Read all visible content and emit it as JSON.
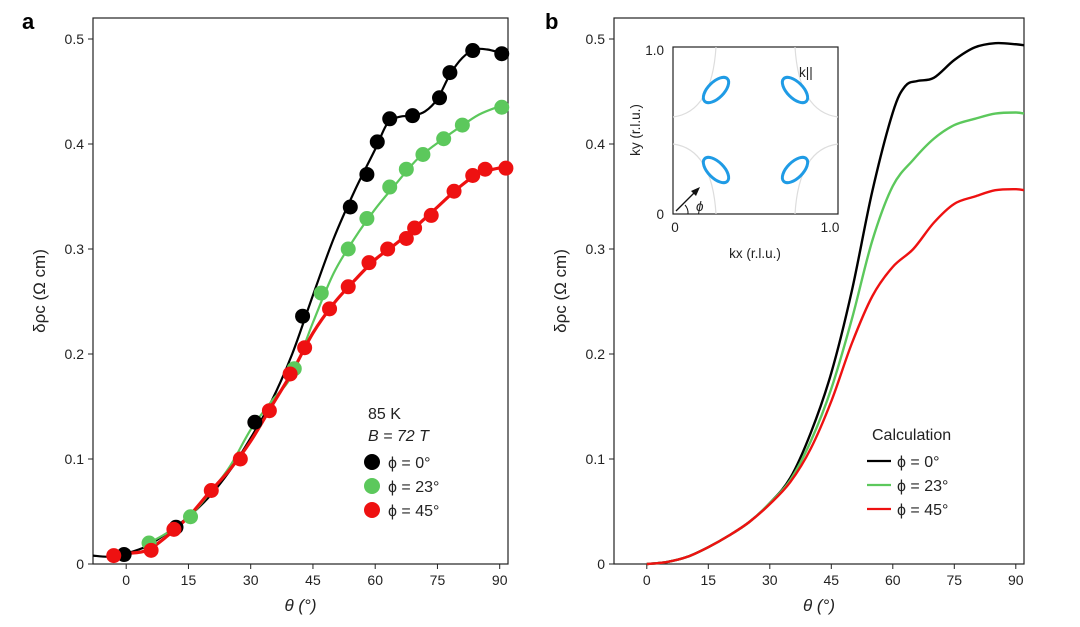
{
  "panel_a_letter": "a",
  "panel_b_letter": "b",
  "legend_a": {
    "line1": "85 K",
    "line2": "B = 72 T",
    "entries": [
      "ϕ = 0°",
      "ϕ = 23°",
      "ϕ = 45°"
    ]
  },
  "legend_b": {
    "title": "Calculation",
    "entries": [
      "ϕ = 0°",
      "ϕ = 23°",
      "ϕ = 45°"
    ]
  },
  "inset": {
    "xlabel": "kx (r.l.u.)",
    "ylabel": "ky (r.l.u.)",
    "x_ticks": [
      "0",
      "1.0"
    ],
    "y_ticks": [
      "0",
      "1.0"
    ],
    "kll_label": "k||",
    "phi_label": "ϕ"
  },
  "colors": {
    "phi0": "#000000",
    "phi23": "#5cc85c",
    "phi45": "#ee1111",
    "pocket": "#1f9be5"
  },
  "chart_data": [
    {
      "type": "scatter",
      "xlabel": "θ (°)",
      "ylabel": "δρc (Ω cm)",
      "xlim": [
        -8,
        92
      ],
      "ylim": [
        0,
        0.52
      ],
      "x_ticks": [
        0,
        15,
        30,
        45,
        60,
        75,
        90
      ],
      "y_ticks": [
        0,
        0.1,
        0.2,
        0.3,
        0.4,
        0.5
      ],
      "series": [
        {
          "name": "ϕ = 0°",
          "points": [
            [
              -0.5,
              0.009
            ],
            [
              12,
              0.035
            ],
            [
              31,
              0.135
            ],
            [
              42.5,
              0.236
            ],
            [
              54,
              0.34
            ],
            [
              58,
              0.371
            ],
            [
              60.5,
              0.402
            ],
            [
              63.5,
              0.424
            ],
            [
              69,
              0.427
            ],
            [
              75.5,
              0.444
            ],
            [
              78,
              0.468
            ],
            [
              83.5,
              0.489
            ],
            [
              90.5,
              0.486
            ]
          ],
          "curve": [
            [
              -8,
              0.008
            ],
            [
              -4,
              0.007
            ],
            [
              0,
              0.01
            ],
            [
              5,
              0.017
            ],
            [
              10,
              0.03
            ],
            [
              15,
              0.045
            ],
            [
              20,
              0.064
            ],
            [
              25,
              0.089
            ],
            [
              30,
              0.12
            ],
            [
              35,
              0.155
            ],
            [
              40,
              0.2
            ],
            [
              45,
              0.256
            ],
            [
              50,
              0.31
            ],
            [
              55,
              0.355
            ],
            [
              60,
              0.395
            ],
            [
              63,
              0.42
            ],
            [
              66,
              0.426
            ],
            [
              69,
              0.427
            ],
            [
              72,
              0.431
            ],
            [
              75,
              0.443
            ],
            [
              78,
              0.466
            ],
            [
              81,
              0.482
            ],
            [
              84,
              0.49
            ],
            [
              87,
              0.49
            ],
            [
              90,
              0.487
            ]
          ]
        },
        {
          "name": "ϕ = 23°",
          "points": [
            [
              5.5,
              0.02
            ],
            [
              15.5,
              0.045
            ],
            [
              40.5,
              0.186
            ],
            [
              47,
              0.258
            ],
            [
              53.5,
              0.3
            ],
            [
              58,
              0.329
            ],
            [
              63.5,
              0.359
            ],
            [
              67.5,
              0.376
            ],
            [
              71.5,
              0.39
            ],
            [
              76.5,
              0.405
            ],
            [
              81,
              0.418
            ],
            [
              90.5,
              0.435
            ]
          ],
          "curve": [
            [
              5,
              0.019
            ],
            [
              10,
              0.03
            ],
            [
              15,
              0.044
            ],
            [
              20,
              0.067
            ],
            [
              25,
              0.093
            ],
            [
              30,
              0.128
            ],
            [
              35,
              0.155
            ],
            [
              40,
              0.18
            ],
            [
              45,
              0.23
            ],
            [
              50,
              0.277
            ],
            [
              55,
              0.31
            ],
            [
              60,
              0.338
            ],
            [
              65,
              0.362
            ],
            [
              70,
              0.385
            ],
            [
              75,
              0.401
            ],
            [
              80,
              0.415
            ],
            [
              85,
              0.428
            ],
            [
              90,
              0.436
            ]
          ]
        },
        {
          "name": "ϕ = 45°",
          "points": [
            [
              -3,
              0.008
            ],
            [
              6,
              0.013
            ],
            [
              11.5,
              0.033
            ],
            [
              20.5,
              0.07
            ],
            [
              27.5,
              0.1
            ],
            [
              34.5,
              0.146
            ],
            [
              39.5,
              0.181
            ],
            [
              43,
              0.206
            ],
            [
              49,
              0.243
            ],
            [
              53.5,
              0.264
            ],
            [
              58.5,
              0.287
            ],
            [
              63,
              0.3
            ],
            [
              67.5,
              0.31
            ],
            [
              69.5,
              0.32
            ],
            [
              73.5,
              0.332
            ],
            [
              79,
              0.355
            ],
            [
              83.5,
              0.37
            ],
            [
              86.5,
              0.376
            ],
            [
              91.5,
              0.377
            ]
          ],
          "curve": [
            [
              -3,
              0.008
            ],
            [
              0,
              0.01
            ],
            [
              5,
              0.013
            ],
            [
              10,
              0.027
            ],
            [
              15,
              0.045
            ],
            [
              20,
              0.068
            ],
            [
              25,
              0.09
            ],
            [
              30,
              0.117
            ],
            [
              35,
              0.15
            ],
            [
              40,
              0.183
            ],
            [
              45,
              0.22
            ],
            [
              50,
              0.248
            ],
            [
              55,
              0.27
            ],
            [
              60,
              0.29
            ],
            [
              65,
              0.305
            ],
            [
              70,
              0.322
            ],
            [
              75,
              0.34
            ],
            [
              80,
              0.358
            ],
            [
              85,
              0.372
            ],
            [
              91,
              0.378
            ]
          ]
        }
      ]
    },
    {
      "type": "line",
      "xlabel": "θ (°)",
      "ylabel": "δρc (Ω cm)",
      "xlim": [
        -8,
        92
      ],
      "ylim": [
        0,
        0.52
      ],
      "x_ticks": [
        0,
        15,
        30,
        45,
        60,
        75,
        90
      ],
      "y_ticks": [
        0,
        0.1,
        0.2,
        0.3,
        0.4,
        0.5
      ],
      "series": [
        {
          "name": "ϕ = 0°",
          "points": [
            [
              0,
              0
            ],
            [
              5,
              0.002
            ],
            [
              10,
              0.007
            ],
            [
              15,
              0.016
            ],
            [
              20,
              0.027
            ],
            [
              25,
              0.04
            ],
            [
              30,
              0.058
            ],
            [
              35,
              0.082
            ],
            [
              40,
              0.125
            ],
            [
              45,
              0.182
            ],
            [
              50,
              0.26
            ],
            [
              55,
              0.355
            ],
            [
              60,
              0.43
            ],
            [
              63,
              0.455
            ],
            [
              66,
              0.46
            ],
            [
              70,
              0.463
            ],
            [
              75,
              0.48
            ],
            [
              80,
              0.492
            ],
            [
              85,
              0.496
            ],
            [
              90,
              0.495
            ],
            [
              92,
              0.494
            ]
          ]
        },
        {
          "name": "ϕ = 23°",
          "points": [
            [
              0,
              0
            ],
            [
              5,
              0.002
            ],
            [
              10,
              0.007
            ],
            [
              15,
              0.016
            ],
            [
              20,
              0.027
            ],
            [
              25,
              0.04
            ],
            [
              30,
              0.058
            ],
            [
              35,
              0.08
            ],
            [
              40,
              0.117
            ],
            [
              45,
              0.167
            ],
            [
              50,
              0.233
            ],
            [
              55,
              0.308
            ],
            [
              60,
              0.36
            ],
            [
              65,
              0.385
            ],
            [
              70,
              0.405
            ],
            [
              75,
              0.418
            ],
            [
              80,
              0.424
            ],
            [
              85,
              0.429
            ],
            [
              90,
              0.43
            ],
            [
              92,
              0.429
            ]
          ]
        },
        {
          "name": "ϕ = 45°",
          "points": [
            [
              0,
              0
            ],
            [
              5,
              0.002
            ],
            [
              10,
              0.007
            ],
            [
              15,
              0.016
            ],
            [
              20,
              0.027
            ],
            [
              25,
              0.04
            ],
            [
              30,
              0.057
            ],
            [
              35,
              0.078
            ],
            [
              40,
              0.11
            ],
            [
              45,
              0.155
            ],
            [
              50,
              0.21
            ],
            [
              55,
              0.255
            ],
            [
              60,
              0.283
            ],
            [
              65,
              0.3
            ],
            [
              70,
              0.325
            ],
            [
              75,
              0.343
            ],
            [
              80,
              0.35
            ],
            [
              85,
              0.356
            ],
            [
              90,
              0.357
            ],
            [
              92,
              0.356
            ]
          ]
        }
      ]
    }
  ]
}
